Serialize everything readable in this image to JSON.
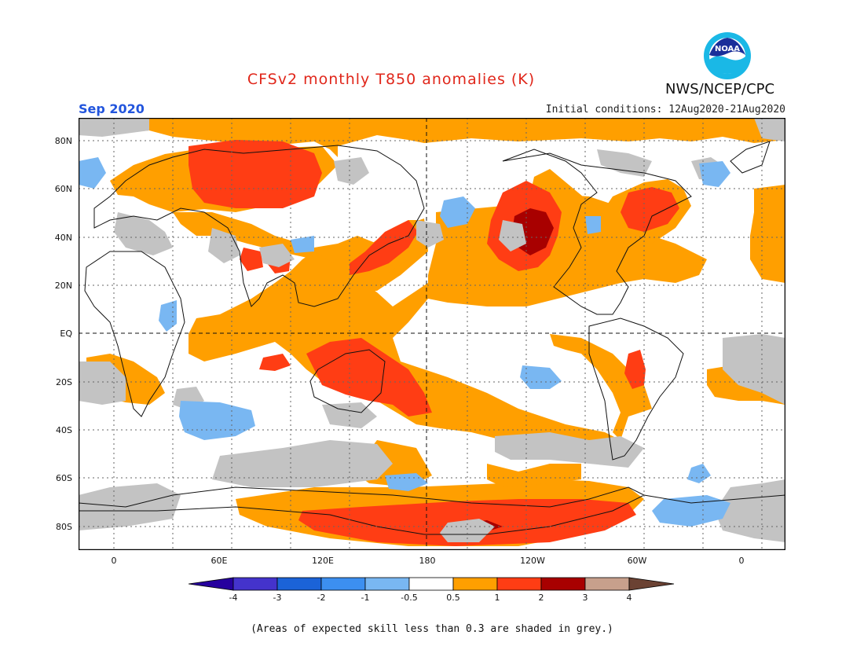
{
  "title": "CFSv2 monthly T850 anomalies (K)",
  "month": "Sep 2020",
  "initial_conditions": "Initial conditions: 12Aug2020-21Aug2020",
  "agency": "NWS/NCEP/CPC",
  "logo_text": "NOAA",
  "lat_labels": [
    "80N",
    "60N",
    "40N",
    "20N",
    "EQ",
    "20S",
    "40S",
    "60S",
    "80S"
  ],
  "lon_labels": [
    "0",
    "60E",
    "120E",
    "180",
    "120W",
    "60W",
    "0"
  ],
  "colorbar": {
    "labels": [
      "-4",
      "-3",
      "-2",
      "-1",
      "-0.5",
      "0.5",
      "1",
      "2",
      "3",
      "4"
    ],
    "colors": [
      "#26009e",
      "#4433cc",
      "#1b63d8",
      "#3c8ff0",
      "#79b7f2",
      "#ffffff",
      "#ff9f00",
      "#ff3d14",
      "#a80000",
      "#c7a08c",
      "#6b4233"
    ],
    "grey_color": "#c3c3c3"
  },
  "note": "(Areas of expected skill less than 0.3 are shaded in grey.)"
}
